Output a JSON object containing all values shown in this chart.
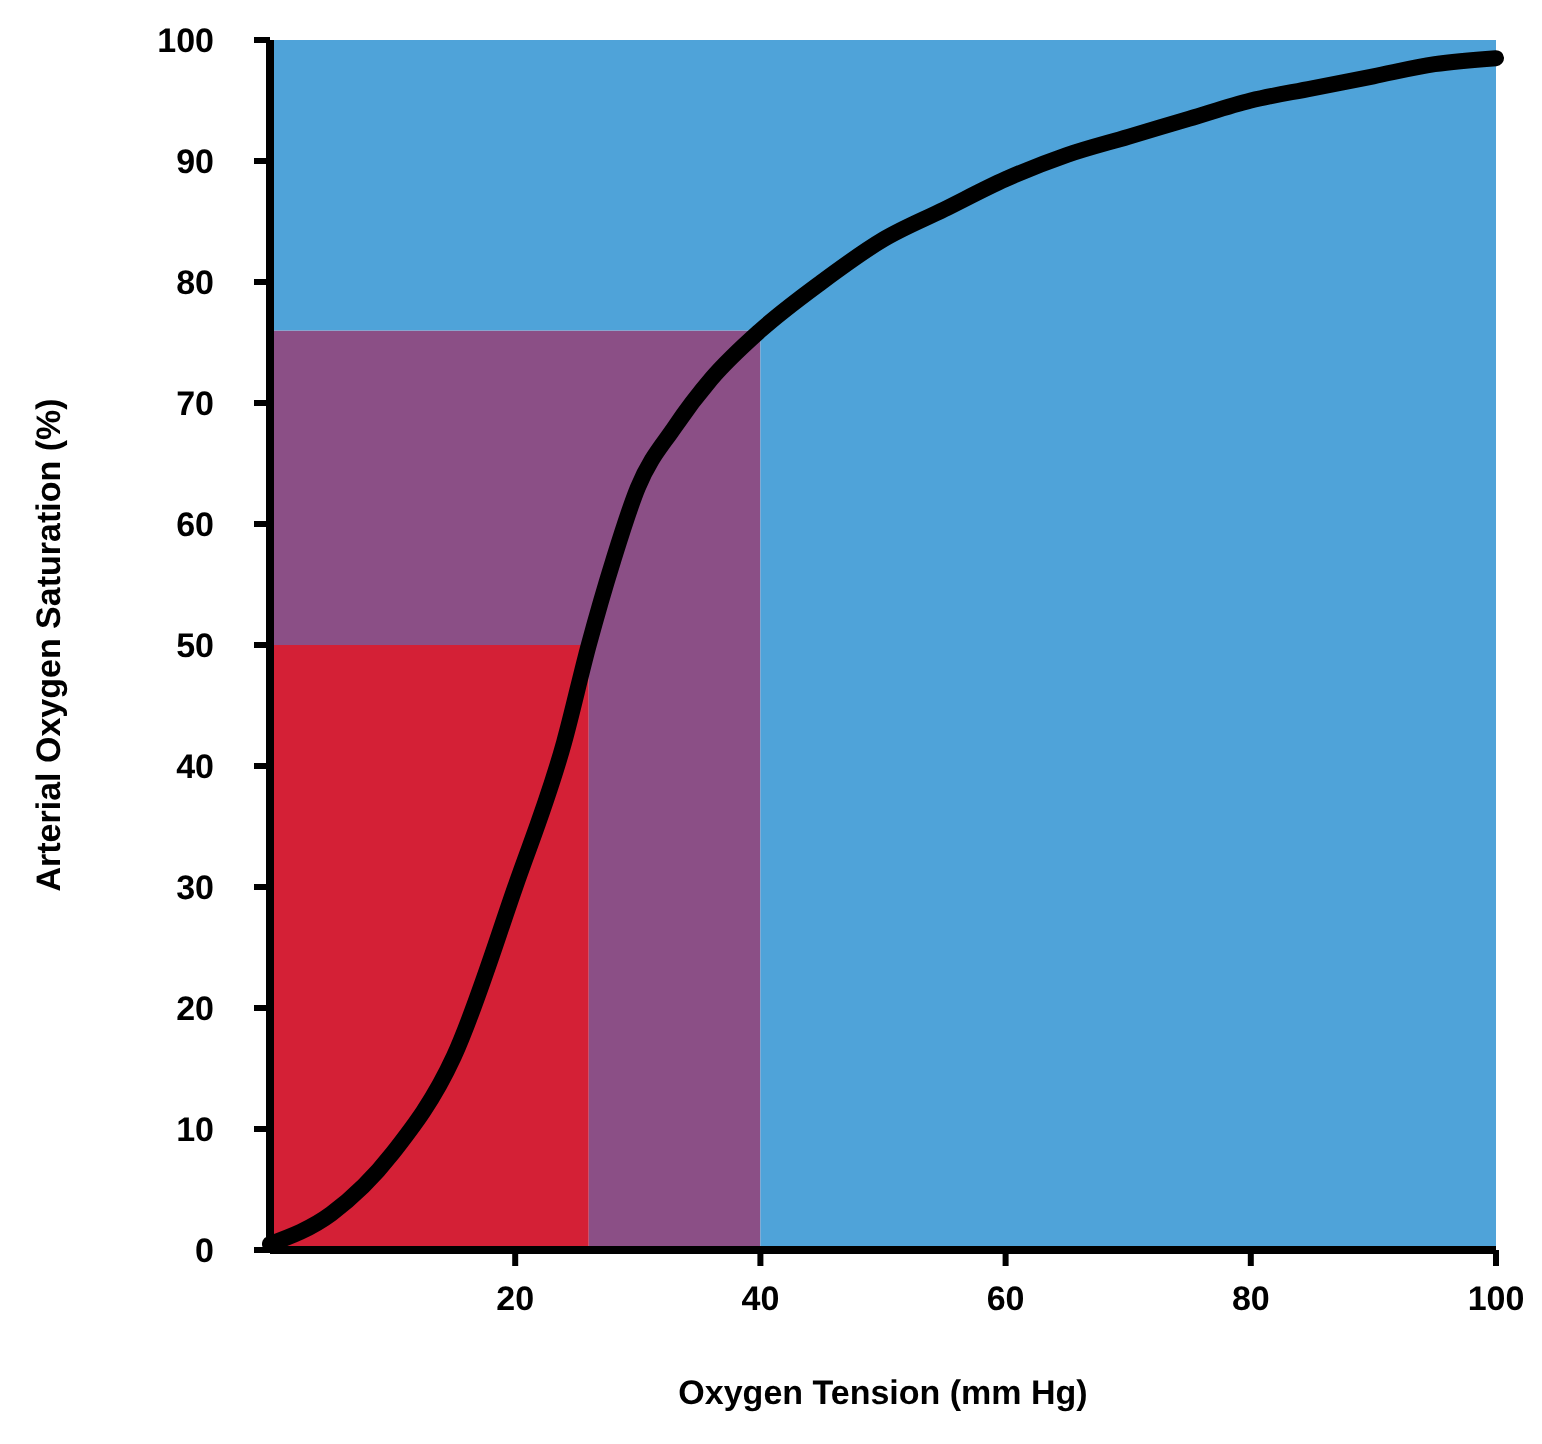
{
  "chart_data": {
    "type": "line",
    "xlabel": "Oxygen Tension (mm Hg)",
    "ylabel": "Arterial Oxygen Saturation (%)",
    "xlim": [
      0,
      100
    ],
    "ylim": [
      0,
      100
    ],
    "xticks": [
      20,
      40,
      60,
      80,
      100
    ],
    "yticks": [
      0,
      10,
      20,
      30,
      40,
      50,
      60,
      70,
      80,
      90,
      100
    ],
    "stacked": true,
    "x": [
      0,
      26,
      26,
      40,
      40,
      100
    ],
    "series": [
      {
        "type": "area",
        "color": "#d42036",
        "values": [
          50,
          50,
          0,
          0,
          0,
          0
        ]
      },
      {
        "type": "area",
        "color": "#8b4f86",
        "values": [
          26,
          26,
          76,
          76,
          0,
          0
        ]
      },
      {
        "type": "area",
        "color": "#4fa3d9",
        "values": [
          24,
          24,
          24,
          24,
          100,
          100
        ]
      },
      {
        "color": "#000000",
        "x": [
          0,
          5,
          10,
          15,
          20,
          24,
          26,
          28,
          30,
          33,
          36,
          40,
          45,
          50,
          55,
          60,
          65,
          70,
          75,
          80,
          85,
          90,
          95,
          100
        ],
        "values": [
          0.5,
          3,
          8,
          16,
          30,
          42,
          50,
          57,
          63,
          68,
          72,
          76,
          80,
          83.5,
          86,
          88.5,
          90.5,
          92,
          93.5,
          95,
          96,
          97,
          98,
          98.5
        ]
      }
    ]
  }
}
